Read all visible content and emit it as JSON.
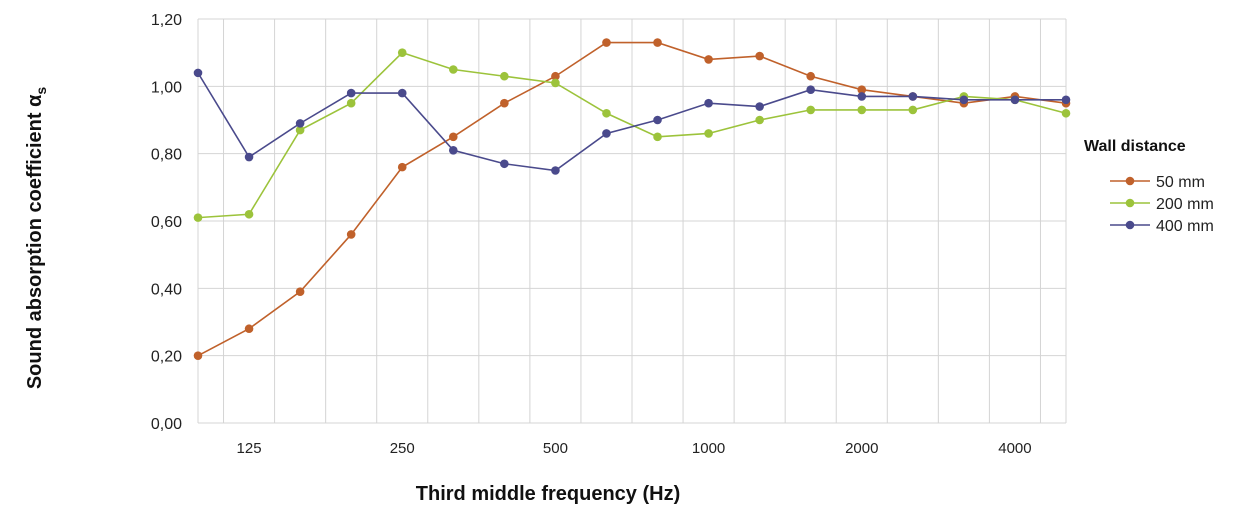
{
  "chart_data": {
    "type": "line",
    "title": "",
    "xlabel": "Third middle frequency (Hz)",
    "ylabel_main": "Sound absorption coefficient α",
    "ylabel_sub": "s",
    "legend_title": "Wall distance",
    "legend_position": "right",
    "grid": true,
    "ylim": [
      0,
      1.2
    ],
    "y_ticks": [
      "0,00",
      "0,20",
      "0,40",
      "0,60",
      "0,80",
      "1,00",
      "1,20"
    ],
    "x": [
      100,
      125,
      160,
      200,
      250,
      315,
      400,
      500,
      630,
      800,
      1000,
      1250,
      1600,
      2000,
      2500,
      3150,
      4000,
      5000
    ],
    "x_tick_labels": [
      "",
      "125",
      "",
      "",
      "250",
      "",
      "",
      "500",
      "",
      "",
      "1000",
      "",
      "",
      "2000",
      "",
      "",
      "4000",
      ""
    ],
    "series": [
      {
        "name": "50 mm",
        "color": "#c0612b",
        "values": [
          0.2,
          0.28,
          0.39,
          0.56,
          0.76,
          0.85,
          0.95,
          1.03,
          1.13,
          1.13,
          1.08,
          1.09,
          1.03,
          0.99,
          0.97,
          0.95,
          0.97,
          0.95
        ]
      },
      {
        "name": "200 mm",
        "color": "#9cc33b",
        "values": [
          0.61,
          0.62,
          0.87,
          0.95,
          1.1,
          1.05,
          1.03,
          1.01,
          0.92,
          0.85,
          0.86,
          0.9,
          0.93,
          0.93,
          0.93,
          0.97,
          0.96,
          0.92
        ]
      },
      {
        "name": "400 mm",
        "color": "#4a4a8c",
        "values": [
          1.04,
          0.79,
          0.89,
          0.98,
          0.98,
          0.81,
          0.77,
          0.75,
          0.86,
          0.9,
          0.95,
          0.94,
          0.99,
          0.97,
          0.97,
          0.96,
          0.96,
          0.96
        ]
      }
    ]
  }
}
